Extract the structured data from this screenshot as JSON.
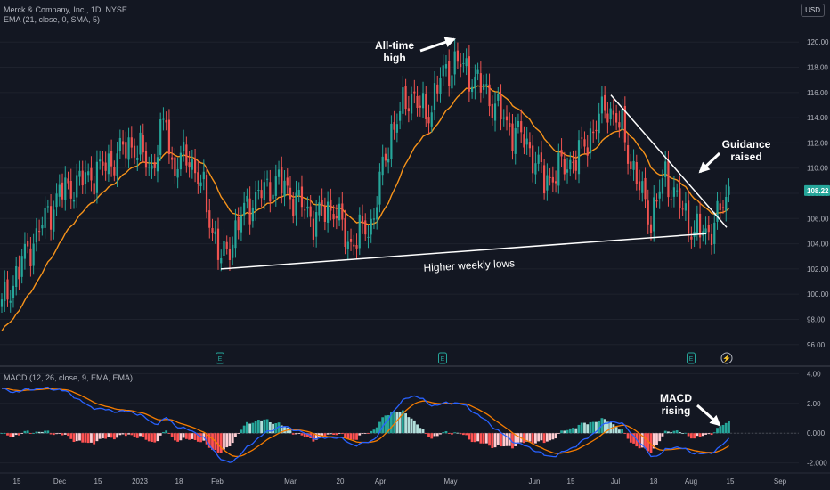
{
  "legend": {
    "symbol_line": "Merck & Company, Inc., 1D, NYSE",
    "ema_line": "EMA (21, close, 0, SMA, 5)",
    "macd_line": "MACD (12, 26, close, 9, EMA, EMA)",
    "currency": "USD"
  },
  "chart_data": {
    "type": "candlestick",
    "price_axis": {
      "ticks": [
        96,
        98,
        100,
        102,
        104,
        106,
        108,
        110,
        112,
        114,
        116,
        118,
        120
      ],
      "labels": [
        "96.00",
        "98.00",
        "100.00",
        "102.00",
        "104.00",
        "106.00",
        "108.00",
        "110.00",
        "112.00",
        "114.00",
        "116.00",
        "118.00",
        "120.00"
      ],
      "range": [
        94.5,
        121.5
      ]
    },
    "last_price": {
      "value": 108.22,
      "label": "108.22",
      "color": "#26a69a"
    },
    "macd_axis": {
      "ticks": [
        -2,
        0,
        2,
        4
      ],
      "labels": [
        "-2.000",
        "0.000",
        "2.00",
        "4.00"
      ],
      "range": [
        -2.5,
        4.2
      ]
    },
    "x_axis_labels": [
      "15",
      "Dec",
      "15",
      "2023",
      "18",
      "Feb",
      "Mar",
      "20",
      "Apr",
      "May",
      "Jun",
      "15",
      "Jul",
      "18",
      "Aug",
      "15",
      "Sep"
    ],
    "colors": {
      "up": "#26a69a",
      "down": "#ef5350",
      "ema": "#f7931a",
      "macd": "#2962ff",
      "signal": "#f57c00",
      "annotation": "#ffffff"
    },
    "anchors": [
      [
        0,
        99
      ],
      [
        8,
        103
      ],
      [
        20,
        108
      ],
      [
        35,
        110
      ],
      [
        45,
        112
      ],
      [
        52,
        110
      ],
      [
        57,
        114
      ],
      [
        59,
        110
      ],
      [
        65,
        111
      ],
      [
        70,
        108
      ],
      [
        76,
        102.5
      ],
      [
        85,
        107
      ],
      [
        95,
        109
      ],
      [
        100,
        108
      ],
      [
        108,
        106
      ],
      [
        115,
        107
      ],
      [
        120,
        104
      ],
      [
        128,
        105.5
      ],
      [
        135,
        113
      ],
      [
        142,
        116
      ],
      [
        147,
        114
      ],
      [
        152,
        117
      ],
      [
        157,
        118.5
      ],
      [
        162,
        117.5
      ],
      [
        168,
        116
      ],
      [
        175,
        113.5
      ],
      [
        182,
        112
      ],
      [
        188,
        109
      ],
      [
        194,
        110
      ],
      [
        200,
        111
      ],
      [
        206,
        113.5
      ],
      [
        210,
        115
      ],
      [
        215,
        113
      ],
      [
        220,
        109
      ],
      [
        225,
        106
      ],
      [
        230,
        109.5
      ],
      [
        235,
        107
      ],
      [
        240,
        105
      ],
      [
        244,
        104.8
      ],
      [
        248,
        106
      ],
      [
        252,
        108.2
      ]
    ],
    "annotations": [
      {
        "lines": [
          "All-time",
          "high"
        ]
      },
      {
        "lines": [
          "Guidance",
          "raised"
        ]
      },
      {
        "lines": [
          "Higher weekly lows"
        ]
      },
      {
        "lines": [
          "MACD",
          "rising"
        ]
      }
    ],
    "earnings_markers": [
      {
        "label": "E"
      },
      {
        "label": "E"
      },
      {
        "label": "E"
      }
    ],
    "dividend_marker": {
      "label": "⚡"
    }
  }
}
